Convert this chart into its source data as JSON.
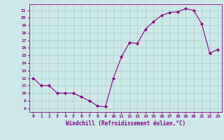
{
  "x": [
    0,
    1,
    2,
    3,
    4,
    5,
    6,
    7,
    8,
    9,
    10,
    11,
    12,
    13,
    14,
    15,
    16,
    17,
    18,
    19,
    20,
    21,
    22,
    23
  ],
  "y": [
    12,
    11,
    11,
    10,
    10,
    10,
    9.5,
    9,
    8.3,
    8.2,
    12,
    14.8,
    16.7,
    16.6,
    18.5,
    19.5,
    20.3,
    20.7,
    20.8,
    21.2,
    21.0,
    19.2,
    15.3,
    15.8
  ],
  "xlabel": "Windchill (Refroidissement éolien,°C)",
  "line_color": "#880088",
  "marker_color": "#880088",
  "bg_color": "#cce8e8",
  "grid_color": "#aacccc",
  "axis_color": "#880088",
  "tick_color": "#880088",
  "ylim": [
    7.5,
    21.8
  ],
  "xlim": [
    -0.5,
    23.5
  ],
  "yticks": [
    8,
    9,
    10,
    11,
    12,
    13,
    14,
    15,
    16,
    17,
    18,
    19,
    20,
    21
  ],
  "xticks": [
    0,
    1,
    2,
    3,
    4,
    5,
    6,
    7,
    8,
    9,
    10,
    11,
    12,
    13,
    14,
    15,
    16,
    17,
    18,
    19,
    20,
    21,
    22,
    23
  ]
}
